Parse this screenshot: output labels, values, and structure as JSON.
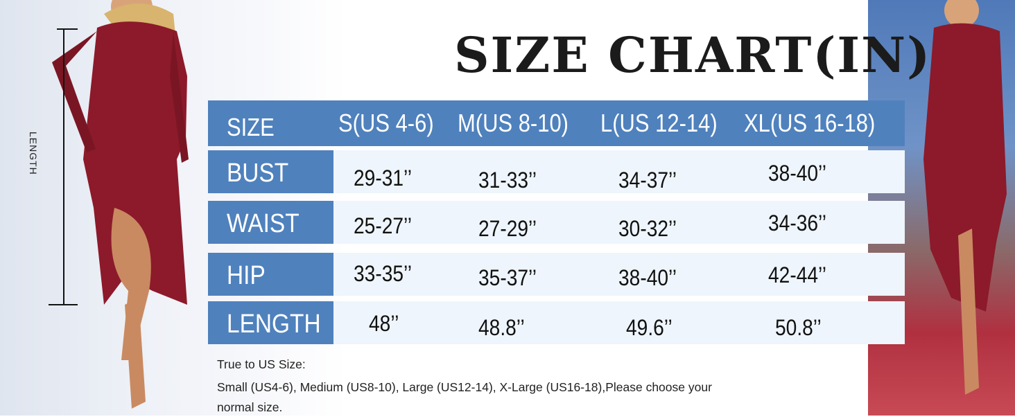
{
  "title": "SIZE CHART(IN)",
  "measure_label": "LENGTH",
  "table": {
    "header": [
      "SIZE",
      "S(US 4-6)",
      "M(US 8-10)",
      "L(US 12-14)",
      "XL(US 16-18)"
    ],
    "rows": [
      {
        "label": "BUST",
        "values": [
          "29-31’’",
          "31-33’’",
          "34-37’’",
          "38-40’’"
        ]
      },
      {
        "label": "WAIST",
        "values": [
          "25-27’’",
          "27-29’’",
          "30-32’’",
          "34-36’’"
        ]
      },
      {
        "label": "HIP",
        "values": [
          "33-35’’",
          "35-37’’",
          "38-40’’",
          "42-44’’"
        ]
      },
      {
        "label": "LENGTH",
        "values": [
          "48’’",
          "48.8’’",
          "49.6’’",
          "50.8’’"
        ]
      }
    ]
  },
  "notes": {
    "line1": "True to US Size:",
    "line2": "Small (US4-6), Medium (US8-10), Large (US12-14), X-Large (US16-18),Please choose your",
    "line3": "normal size."
  },
  "colors": {
    "header_blue": "#4f81bd",
    "cell_bg": "#eef5fc",
    "dress": "#8c1a2a"
  }
}
